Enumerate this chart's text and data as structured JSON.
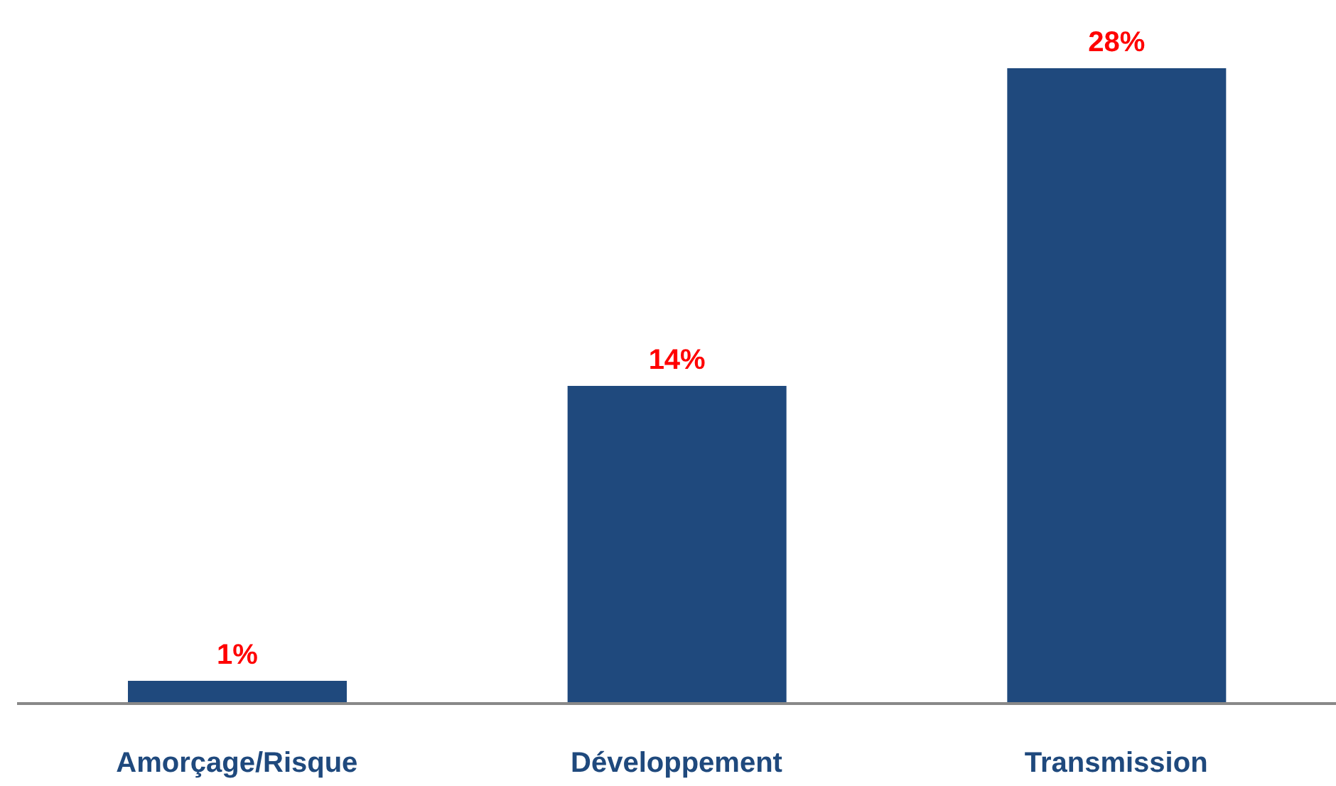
{
  "chart_data": {
    "type": "bar",
    "categories": [
      "Amorçage/Risque",
      "Développement",
      "Transmission"
    ],
    "values": [
      1,
      14,
      28
    ],
    "value_labels": [
      "1%",
      "14%",
      "28%"
    ],
    "color": "#1f497d"
  }
}
